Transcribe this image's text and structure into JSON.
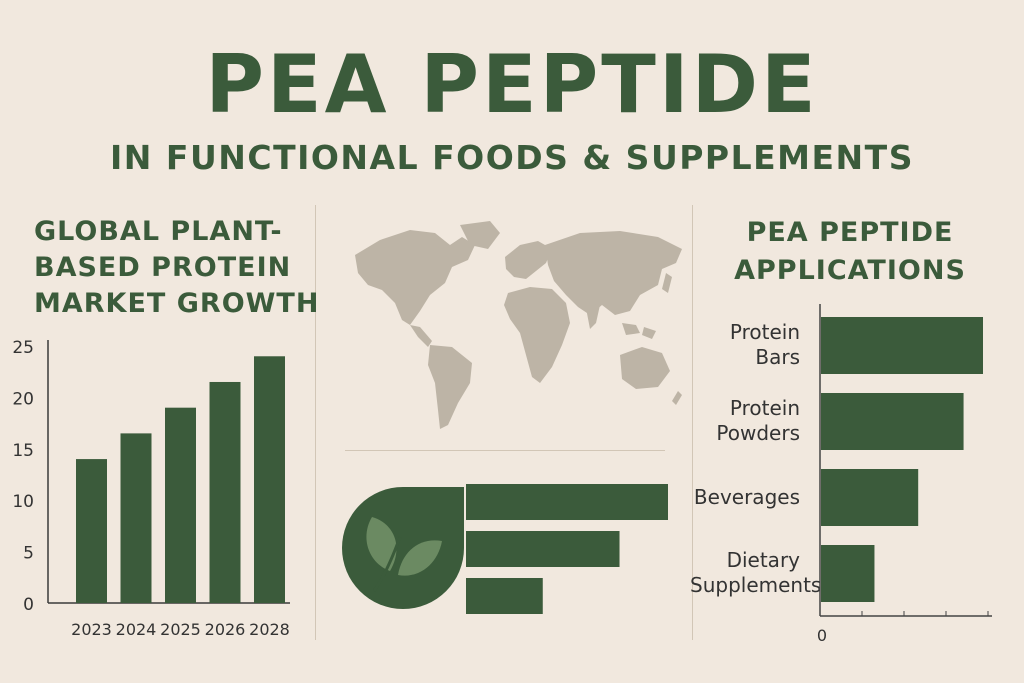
{
  "header": {
    "title": "PEA PEPTIDE",
    "subtitle": "IN FUNCTIONAL FOODS & SUPPLEMENTS"
  },
  "left_panel": {
    "title_lines": [
      "GLOBAL PLANT-",
      "BASED PROTEIN",
      "MARKET GROWTH"
    ]
  },
  "right_panel": {
    "title_lines": [
      "PEA PEPTIDE",
      "APPLICATIONS"
    ]
  },
  "colors": {
    "primary": "#3b5b3b",
    "background": "#f1e8de",
    "map": "#bdb4a6"
  },
  "icons": [
    "world-map-icon",
    "leaf-icon"
  ],
  "chart_data": [
    {
      "type": "bar",
      "orientation": "vertical",
      "title": "GLOBAL PLANT-BASED PROTEIN MARKET GROWTH",
      "categories": [
        "2023",
        "2024",
        "2025",
        "2026",
        "2028"
      ],
      "values": [
        14,
        16.5,
        19,
        21.5,
        24
      ],
      "yticks": [
        "0",
        "5",
        "10",
        "15",
        "20",
        "25"
      ],
      "ylim": [
        0,
        25
      ]
    },
    {
      "type": "bar",
      "orientation": "horizontal",
      "title": "PEA PEPTIDE APPLICATIONS",
      "categories": [
        "Protein\nBars",
        "Protein\nPowders",
        "Beverages",
        "Dietary\nSupplements"
      ],
      "values": [
        100,
        88,
        60,
        33
      ],
      "xtick_label": "0",
      "xlim": [
        0,
        110
      ]
    },
    {
      "type": "bar",
      "orientation": "horizontal",
      "decorative": true,
      "values": [
        100,
        76,
        38
      ],
      "xlim": [
        0,
        100
      ]
    }
  ]
}
